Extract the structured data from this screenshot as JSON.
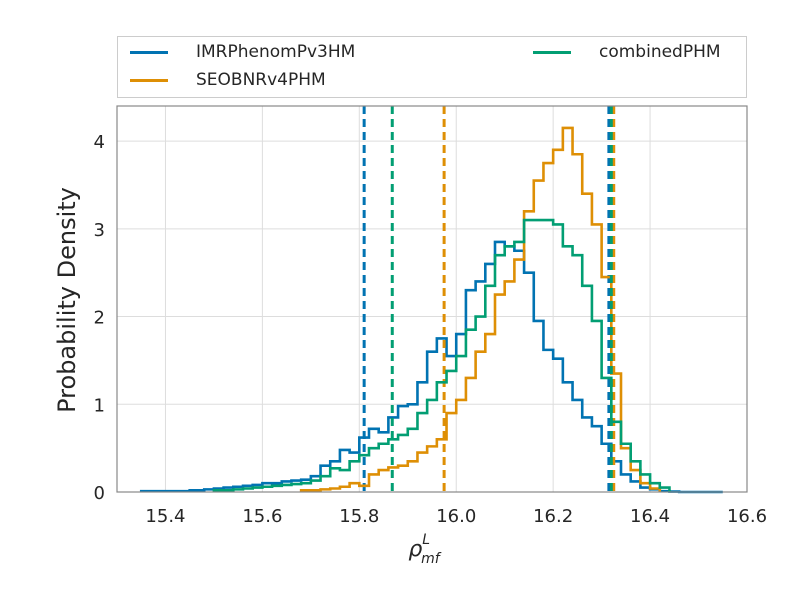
{
  "chart_data": {
    "type": "histogram",
    "xlabel_symbol": "ρ",
    "xlabel_sup": "L",
    "xlabel_sub": "mf",
    "ylabel": "Probability Density",
    "xlim": [
      15.3,
      16.6
    ],
    "ylim": [
      0,
      4.4
    ],
    "xticks": [
      15.4,
      15.6,
      15.8,
      16.0,
      16.2,
      16.4,
      16.6
    ],
    "xtick_labels": [
      "15.4",
      "15.6",
      "15.8",
      "16.0",
      "16.2",
      "16.4",
      "16.6"
    ],
    "yticks": [
      0,
      1,
      2,
      3,
      4
    ],
    "ytick_labels": [
      "0",
      "1",
      "2",
      "3",
      "4"
    ],
    "grid": true,
    "legend_placement": "above plot, two columns",
    "series": [
      {
        "name": "IMRPhenomPv3HM",
        "color": "#0173b2",
        "bins": [
          15.35,
          15.45,
          15.48,
          15.5,
          15.52,
          15.54,
          15.56,
          15.58,
          15.6,
          15.62,
          15.64,
          15.66,
          15.68,
          15.7,
          15.72,
          15.74,
          15.76,
          15.78,
          15.8,
          15.82,
          15.84,
          15.86,
          15.88,
          15.9,
          15.92,
          15.94,
          15.96,
          15.98,
          16.0,
          16.02,
          16.04,
          16.06,
          16.08,
          16.1,
          16.12,
          16.14,
          16.16,
          16.18,
          16.2,
          16.22,
          16.24,
          16.26,
          16.28,
          16.3,
          16.32,
          16.34,
          16.36,
          16.38,
          16.4,
          16.42,
          16.44,
          16.46,
          16.48,
          16.55
        ],
        "values": [
          0.01,
          0.02,
          0.03,
          0.04,
          0.05,
          0.06,
          0.07,
          0.08,
          0.1,
          0.1,
          0.12,
          0.13,
          0.14,
          0.18,
          0.3,
          0.35,
          0.48,
          0.45,
          0.62,
          0.72,
          0.68,
          0.85,
          0.98,
          1.0,
          1.25,
          1.6,
          1.75,
          1.55,
          1.8,
          2.3,
          2.4,
          2.6,
          2.85,
          2.8,
          2.75,
          2.5,
          1.95,
          1.62,
          1.52,
          1.25,
          1.05,
          0.85,
          0.75,
          0.55,
          0.35,
          0.2,
          0.12,
          0.05,
          0.03,
          0.01,
          0.005,
          0.0,
          0.0
        ],
        "lines": [
          15.81,
          16.315
        ]
      },
      {
        "name": "SEOBNRv4PHM",
        "color": "#de8f05",
        "bins": [
          15.68,
          15.72,
          15.74,
          15.76,
          15.78,
          15.8,
          15.82,
          15.84,
          15.86,
          15.88,
          15.9,
          15.92,
          15.94,
          15.96,
          15.98,
          16.0,
          16.02,
          16.04,
          16.06,
          16.08,
          16.1,
          16.12,
          16.14,
          16.16,
          16.18,
          16.2,
          16.22,
          16.24,
          16.26,
          16.28,
          16.3,
          16.32,
          16.34,
          16.36,
          16.38,
          16.4,
          16.42
        ],
        "values": [
          0.02,
          0.03,
          0.04,
          0.06,
          0.1,
          0.07,
          0.2,
          0.25,
          0.28,
          0.3,
          0.35,
          0.45,
          0.52,
          0.6,
          0.9,
          1.05,
          1.3,
          1.6,
          1.8,
          2.25,
          2.4,
          2.65,
          3.2,
          3.55,
          3.75,
          3.9,
          4.15,
          3.85,
          3.4,
          3.05,
          2.45,
          1.35,
          0.5,
          0.25,
          0.1,
          0.04
        ],
        "lines": [
          15.975,
          16.325
        ]
      },
      {
        "name": "combinedPHM",
        "color": "#029e73",
        "bins": [
          15.5,
          15.54,
          15.56,
          15.58,
          15.6,
          15.62,
          15.64,
          15.66,
          15.68,
          15.7,
          15.72,
          15.74,
          15.76,
          15.78,
          15.8,
          15.82,
          15.84,
          15.86,
          15.88,
          15.9,
          15.92,
          15.94,
          15.96,
          15.98,
          16.0,
          16.02,
          16.04,
          16.06,
          16.08,
          16.1,
          16.12,
          16.14,
          16.16,
          16.18,
          16.2,
          16.22,
          16.24,
          16.26,
          16.28,
          16.3,
          16.32,
          16.34,
          16.36,
          16.38,
          16.4,
          16.42,
          16.44
        ],
        "values": [
          0.02,
          0.03,
          0.04,
          0.05,
          0.06,
          0.07,
          0.08,
          0.09,
          0.1,
          0.13,
          0.18,
          0.27,
          0.25,
          0.35,
          0.42,
          0.5,
          0.55,
          0.6,
          0.65,
          0.72,
          0.9,
          1.05,
          1.25,
          1.38,
          1.55,
          1.85,
          2.0,
          2.35,
          2.7,
          2.8,
          2.85,
          3.1,
          3.1,
          3.1,
          3.05,
          2.8,
          2.7,
          2.35,
          1.95,
          1.3,
          0.8,
          0.55,
          0.35,
          0.2,
          0.1,
          0.05
        ],
        "lines": [
          15.868,
          16.32
        ]
      }
    ]
  },
  "legend": {
    "items": [
      {
        "label": "IMRPhenomPv3HM",
        "color": "#0173b2"
      },
      {
        "label": "SEOBNRv4PHM",
        "color": "#de8f05"
      },
      {
        "label": "combinedPHM",
        "color": "#029e73"
      }
    ]
  }
}
